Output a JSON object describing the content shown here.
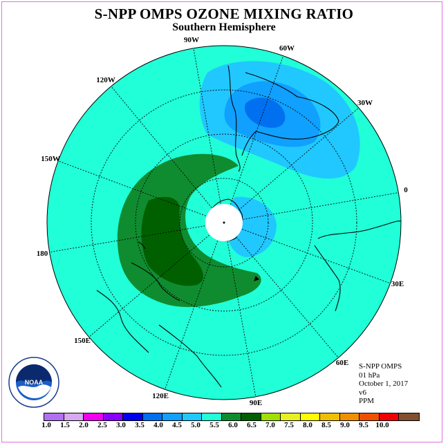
{
  "title": "S-NPP OMPS OZONE MIXING RATIO",
  "subtitle": "Southern Hemisphere",
  "longitude_labels": [
    "90W",
    "60W",
    "30W",
    "0",
    "30E",
    "60E",
    "90E",
    "120E",
    "150E",
    "180",
    "150W",
    "120W"
  ],
  "info": {
    "instrument": "S-NPP OMPS",
    "level": "01 hPa",
    "date": "October 1, 2017",
    "version": "v6",
    "units": "PPM"
  },
  "logo_text": "NOAA",
  "colorbar": {
    "ticks": [
      "1.0",
      "1.5",
      "2.0",
      "2.5",
      "3.0",
      "3.5",
      "4.0",
      "4.5",
      "5.0",
      "5.5",
      "6.0",
      "6.5",
      "7.0",
      "7.5",
      "8.0",
      "8.5",
      "9.0",
      "9.5",
      "10.0"
    ],
    "colors": [
      "#b070f0",
      "#d8a8f0",
      "#f000f0",
      "#8800ff",
      "#0000f0",
      "#0070f0",
      "#10a0ff",
      "#20c8ff",
      "#20ffd8",
      "#108c30",
      "#006000",
      "#a0e000",
      "#e8f020",
      "#ffff00",
      "#f0c000",
      "#f09000",
      "#f05000",
      "#f00000",
      "#805030"
    ]
  }
}
